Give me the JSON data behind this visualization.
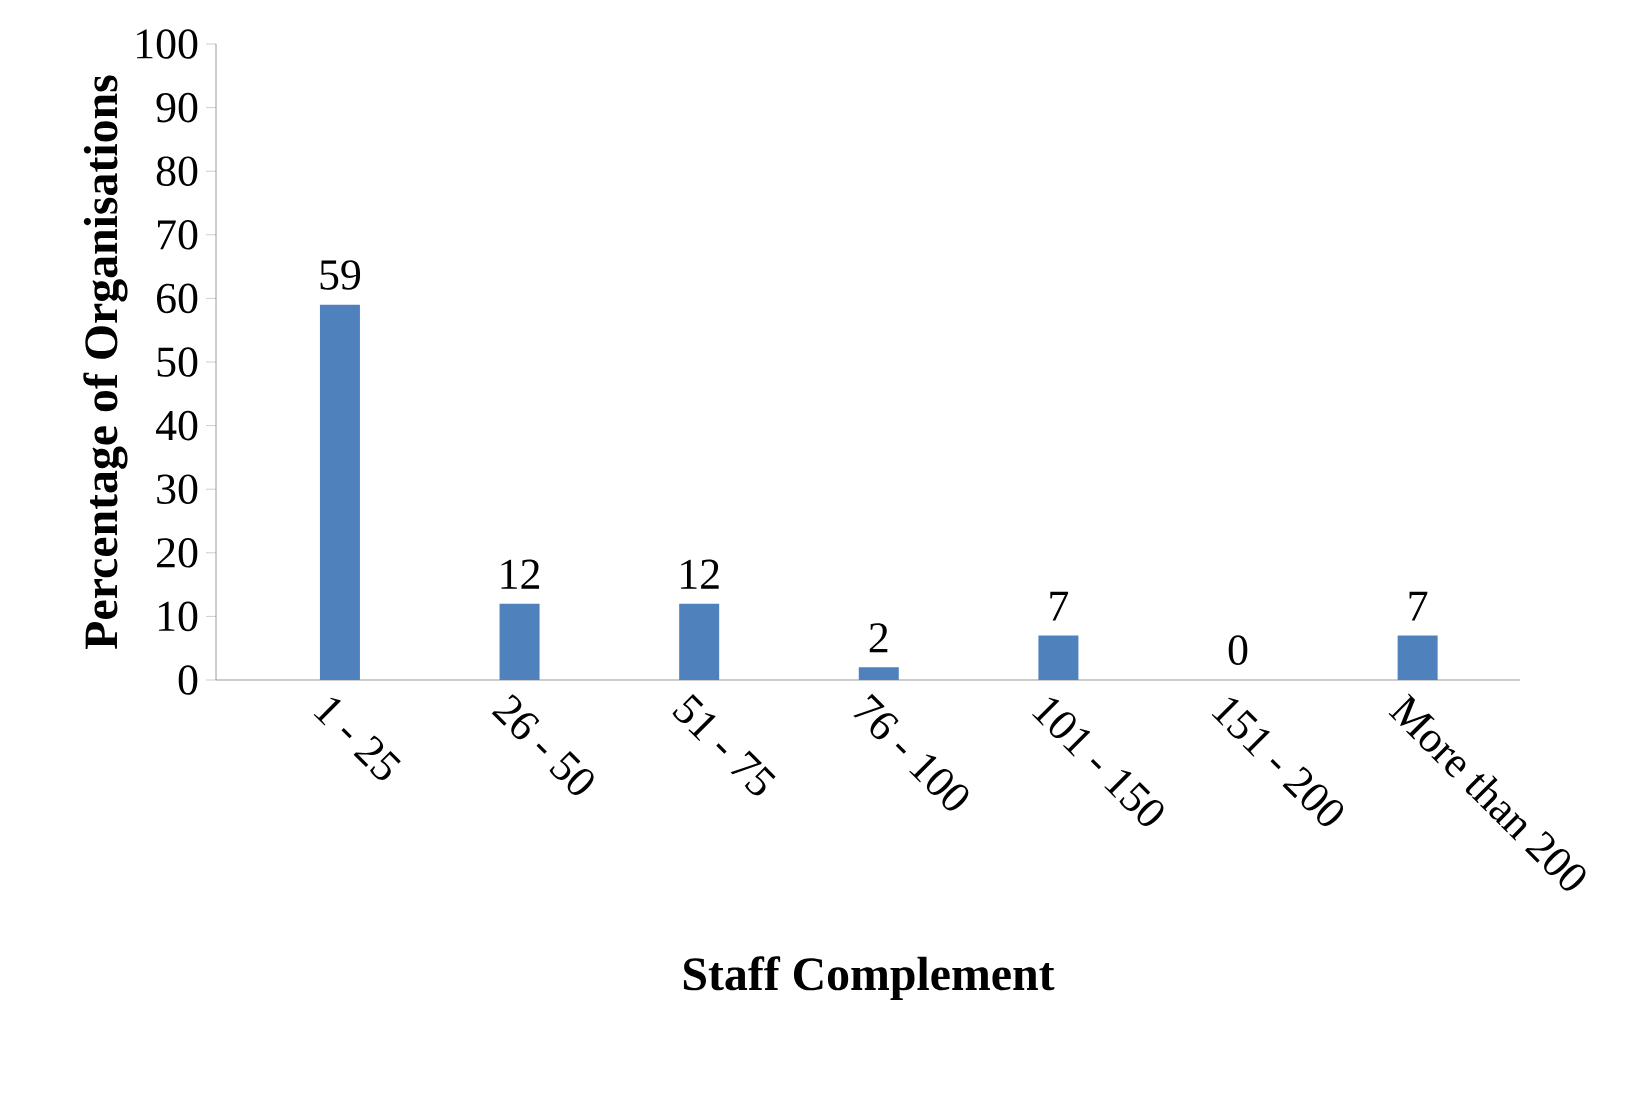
{
  "chart_data": {
    "type": "bar",
    "xlabel": "Staff Complement",
    "ylabel": "Percentage of Organisations",
    "categories": [
      "1 - 25",
      "26 - 50",
      "51 - 75",
      "76 - 100",
      "101 - 150",
      "151 - 200",
      "More than 200"
    ],
    "values": [
      59,
      12,
      12,
      2,
      7,
      0,
      7
    ],
    "color": "#4f81bd",
    "ylim": [
      0,
      100
    ],
    "yticks": [
      0,
      10,
      20,
      30,
      40,
      50,
      60,
      70,
      80,
      90,
      100
    ],
    "data_labels": true,
    "grid": false
  }
}
